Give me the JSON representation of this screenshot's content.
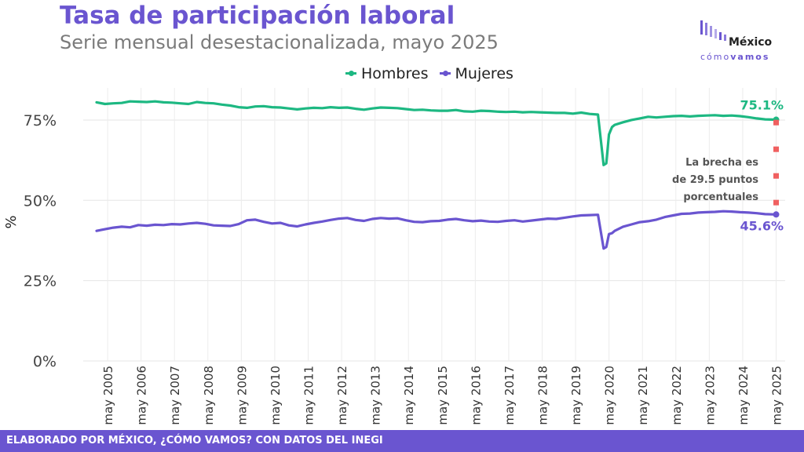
{
  "header": {
    "title": "Tasa de participación laboral",
    "subtitle": "Serie mensual desestacionalizada, mayo 2025"
  },
  "logo": {
    "line1": "México",
    "line2a": "cómo",
    "line2b": "vamos"
  },
  "footer": {
    "text": "ELABORADO POR MÉXICO, ¿CÓMO VAMOS? CON DATOS DEL INEGI"
  },
  "chart_data": {
    "type": "line",
    "title": "Tasa de participación laboral",
    "ylabel": "%",
    "ylim": [
      0,
      85
    ],
    "yticks": [
      0,
      25,
      50,
      75
    ],
    "ytick_labels": [
      "0%",
      "25%",
      "50%",
      "75%"
    ],
    "xrange": [
      2004.6,
      2025.6
    ],
    "xticks": [
      2005.33,
      2006.33,
      2007.33,
      2008.33,
      2009.33,
      2010.33,
      2011.33,
      2012.33,
      2013.33,
      2014.33,
      2015.33,
      2016.33,
      2017.33,
      2018.33,
      2019.33,
      2020.33,
      2021.33,
      2022.33,
      2023.33,
      2024.33,
      2025.33
    ],
    "xtick_labels": [
      "may 2005",
      "may 2006",
      "may 2007",
      "may 2008",
      "may 2009",
      "may 2010",
      "may 2011",
      "may 2012",
      "may 2013",
      "may 2014",
      "may 2015",
      "may 2016",
      "may 2017",
      "may 2018",
      "may 2019",
      "may 2020",
      "may 2021",
      "may 2022",
      "may 2023",
      "may 2024",
      "may 2025"
    ],
    "legend": [
      "Hombres",
      "Mujeres"
    ],
    "series": [
      {
        "name": "Hombres",
        "color": "#1db882",
        "x": [
          2005.0,
          2005.25,
          2005.5,
          2005.75,
          2006.0,
          2006.25,
          2006.5,
          2006.75,
          2007.0,
          2007.25,
          2007.5,
          2007.75,
          2008.0,
          2008.25,
          2008.5,
          2008.75,
          2009.0,
          2009.25,
          2009.5,
          2009.75,
          2010.0,
          2010.25,
          2010.5,
          2010.75,
          2011.0,
          2011.25,
          2011.5,
          2011.75,
          2012.0,
          2012.25,
          2012.5,
          2012.75,
          2013.0,
          2013.25,
          2013.5,
          2013.75,
          2014.0,
          2014.25,
          2014.5,
          2014.75,
          2015.0,
          2015.25,
          2015.5,
          2015.75,
          2016.0,
          2016.25,
          2016.5,
          2016.75,
          2017.0,
          2017.25,
          2017.5,
          2017.75,
          2018.0,
          2018.25,
          2018.5,
          2018.75,
          2019.0,
          2019.25,
          2019.5,
          2019.75,
          2020.0,
          2020.17,
          2020.25,
          2020.33,
          2020.42,
          2020.5,
          2020.75,
          2021.0,
          2021.25,
          2021.5,
          2021.75,
          2022.0,
          2022.25,
          2022.5,
          2022.75,
          2023.0,
          2023.25,
          2023.5,
          2023.75,
          2024.0,
          2024.25,
          2024.5,
          2024.75,
          2025.0,
          2025.33
        ],
        "values": [
          80.5,
          80.0,
          80.2,
          80.3,
          80.8,
          80.7,
          80.6,
          80.8,
          80.5,
          80.4,
          80.2,
          80.0,
          80.6,
          80.3,
          80.2,
          79.8,
          79.5,
          79.0,
          78.8,
          79.2,
          79.3,
          79.0,
          78.9,
          78.6,
          78.3,
          78.6,
          78.8,
          78.7,
          79.0,
          78.8,
          78.9,
          78.5,
          78.2,
          78.6,
          78.9,
          78.8,
          78.7,
          78.4,
          78.1,
          78.2,
          78.0,
          77.9,
          77.9,
          78.1,
          77.7,
          77.6,
          77.9,
          77.8,
          77.6,
          77.5,
          77.6,
          77.4,
          77.5,
          77.4,
          77.3,
          77.2,
          77.2,
          77.0,
          77.3,
          76.9,
          76.7,
          61.0,
          61.5,
          70.5,
          72.8,
          73.5,
          74.3,
          75.0,
          75.5,
          76.0,
          75.8,
          76.0,
          76.2,
          76.3,
          76.1,
          76.3,
          76.4,
          76.5,
          76.3,
          76.4,
          76.2,
          75.9,
          75.5,
          75.2,
          75.1
        ]
      },
      {
        "name": "Mujeres",
        "color": "#6a55d0",
        "x": [
          2005.0,
          2005.25,
          2005.5,
          2005.75,
          2006.0,
          2006.25,
          2006.5,
          2006.75,
          2007.0,
          2007.25,
          2007.5,
          2007.75,
          2008.0,
          2008.25,
          2008.5,
          2008.75,
          2009.0,
          2009.25,
          2009.5,
          2009.75,
          2010.0,
          2010.25,
          2010.5,
          2010.75,
          2011.0,
          2011.25,
          2011.5,
          2011.75,
          2012.0,
          2012.25,
          2012.5,
          2012.75,
          2013.0,
          2013.25,
          2013.5,
          2013.75,
          2014.0,
          2014.25,
          2014.5,
          2014.75,
          2015.0,
          2015.25,
          2015.5,
          2015.75,
          2016.0,
          2016.25,
          2016.5,
          2016.75,
          2017.0,
          2017.25,
          2017.5,
          2017.75,
          2018.0,
          2018.25,
          2018.5,
          2018.75,
          2019.0,
          2019.25,
          2019.5,
          2019.75,
          2020.0,
          2020.17,
          2020.25,
          2020.33,
          2020.42,
          2020.5,
          2020.75,
          2021.0,
          2021.25,
          2021.5,
          2021.75,
          2022.0,
          2022.25,
          2022.5,
          2022.75,
          2023.0,
          2023.25,
          2023.5,
          2023.75,
          2024.0,
          2024.25,
          2024.5,
          2024.75,
          2025.0,
          2025.33
        ],
        "values": [
          40.5,
          41.0,
          41.5,
          41.8,
          41.6,
          42.3,
          42.1,
          42.4,
          42.3,
          42.6,
          42.5,
          42.8,
          43.0,
          42.7,
          42.2,
          42.1,
          42.0,
          42.6,
          43.8,
          44.0,
          43.3,
          42.8,
          43.0,
          42.2,
          41.9,
          42.5,
          43.0,
          43.4,
          43.9,
          44.3,
          44.5,
          43.9,
          43.6,
          44.2,
          44.5,
          44.3,
          44.4,
          43.8,
          43.3,
          43.2,
          43.5,
          43.6,
          44.0,
          44.2,
          43.8,
          43.5,
          43.7,
          43.4,
          43.3,
          43.6,
          43.8,
          43.4,
          43.7,
          44.0,
          44.3,
          44.2,
          44.6,
          45.0,
          45.3,
          45.4,
          45.5,
          35.0,
          35.5,
          39.5,
          39.8,
          40.5,
          41.8,
          42.5,
          43.2,
          43.5,
          44.0,
          44.8,
          45.3,
          45.8,
          45.9,
          46.2,
          46.3,
          46.4,
          46.6,
          46.5,
          46.3,
          46.2,
          46.0,
          45.7,
          45.6
        ]
      }
    ],
    "end_labels": [
      "75.1%",
      "45.6%"
    ],
    "annotation": [
      "La brecha es",
      "de 29.5 puntos",
      "porcentuales"
    ],
    "gap_marker_values": [
      74.2,
      65.9,
      57.6,
      49.3
    ],
    "gap_marker_color": "#f06060"
  }
}
